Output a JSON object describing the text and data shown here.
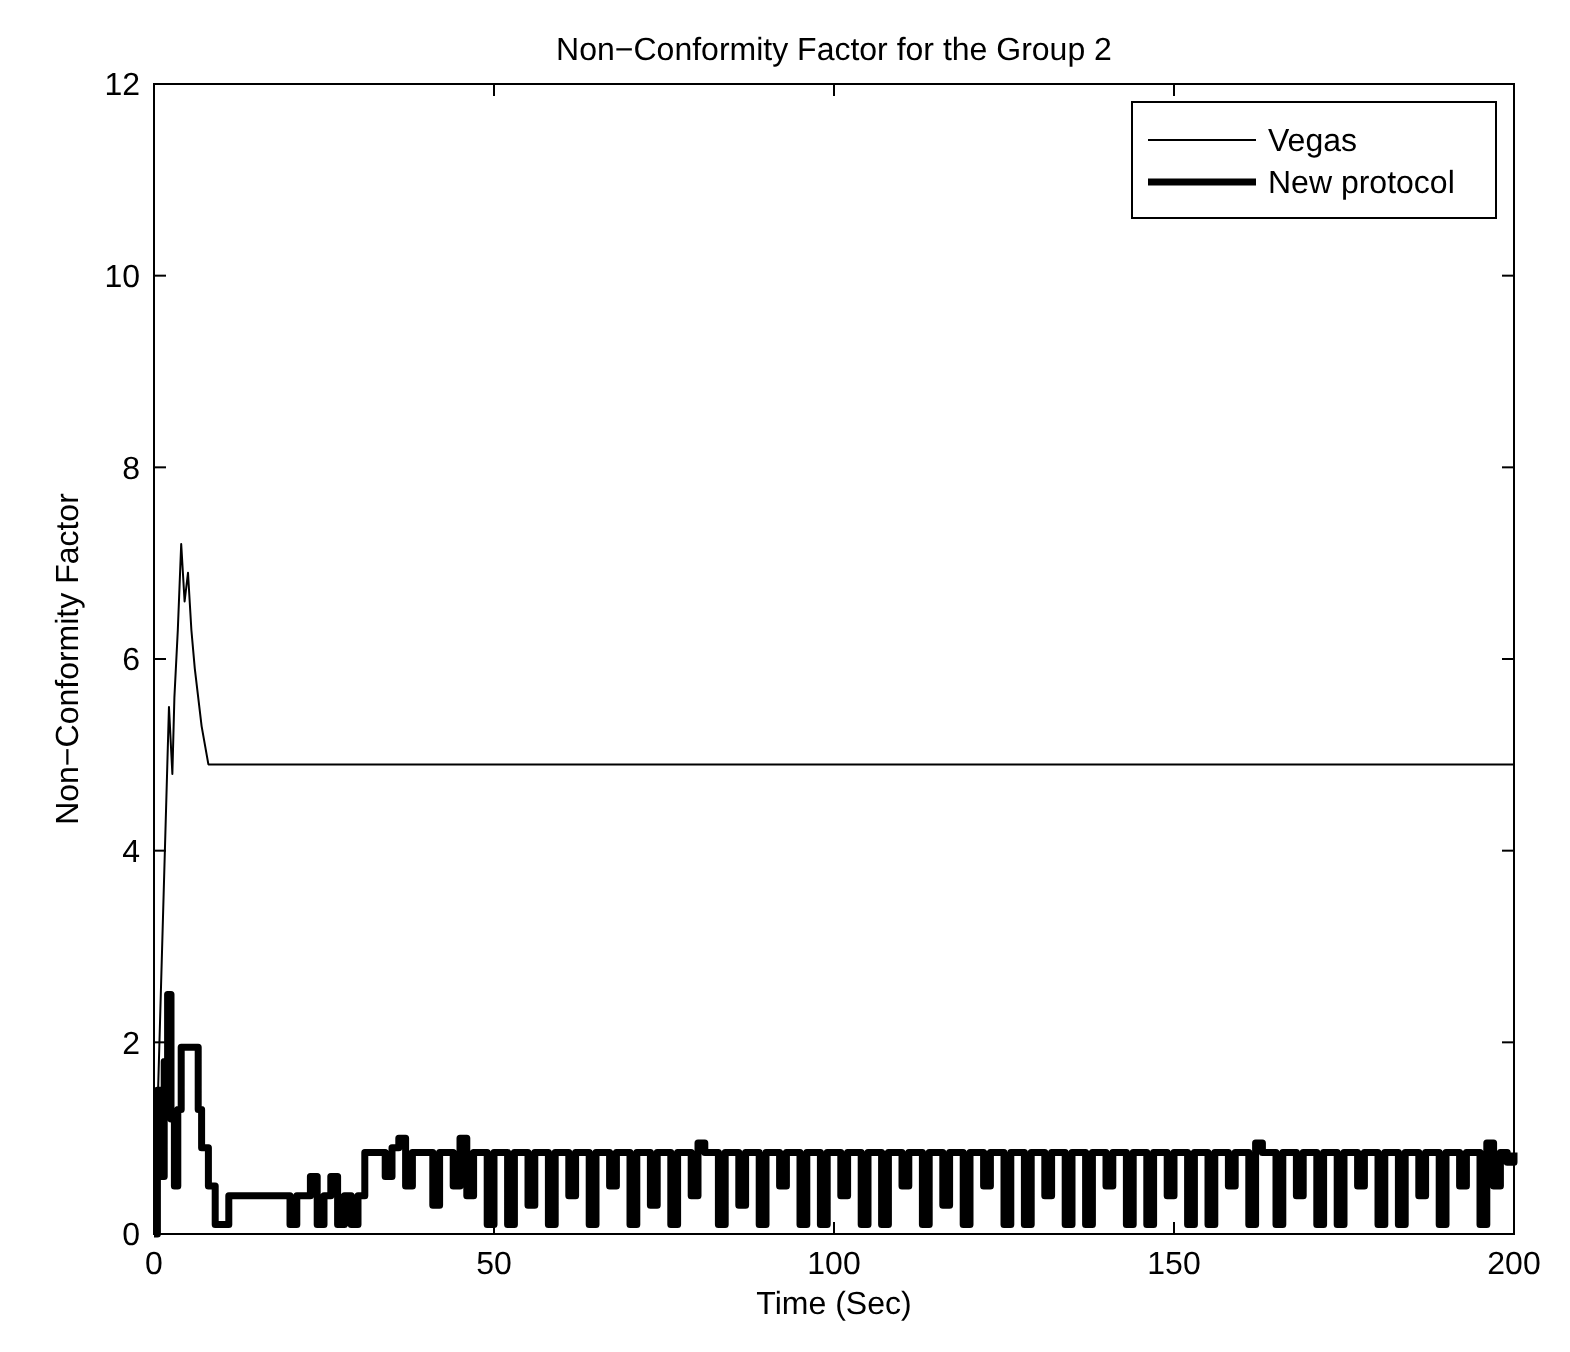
{
  "chart_data": {
    "type": "line",
    "title": "Non−Conformity Factor for the Group 2",
    "xlabel": "Time (Sec)",
    "ylabel": "Non−Conformity Factor",
    "xlim": [
      0,
      200
    ],
    "xticks": [
      0,
      50,
      100,
      150,
      200
    ],
    "ylim": [
      0,
      12
    ],
    "yticks": [
      0,
      2,
      4,
      6,
      8,
      10,
      12
    ],
    "grid": false,
    "legend": "top right",
    "series": [
      {
        "name": "Vegas",
        "color": "#000000",
        "x": [
          0,
          1,
          1.8,
          2.2,
          2.7,
          3,
          3.5,
          4,
          4.5,
          5,
          5.5,
          6,
          7,
          8,
          200
        ],
        "values": [
          0,
          2.5,
          4.5,
          5.5,
          4.8,
          5.6,
          6.3,
          7.2,
          6.6,
          6.9,
          6.3,
          5.9,
          5.3,
          4.9,
          4.9
        ]
      },
      {
        "name": "New protocol",
        "color": "#000000",
        "type": "step",
        "x": [
          0,
          0.5,
          1,
          1.5,
          2,
          2.5,
          3,
          3.5,
          4,
          6.5,
          7,
          8,
          9,
          11,
          20,
          21,
          23,
          24,
          25,
          26,
          27,
          28,
          29,
          30,
          31,
          34,
          35,
          36,
          37,
          38,
          41,
          42,
          44,
          45,
          46,
          47,
          49,
          50,
          52,
          53,
          55,
          56,
          58,
          59,
          61,
          62,
          64,
          65,
          67,
          68,
          70,
          71,
          73,
          74,
          76,
          77,
          79,
          80,
          81,
          83,
          84,
          86,
          87,
          89,
          90,
          92,
          93,
          95,
          96,
          98,
          99,
          101,
          102,
          104,
          105,
          107,
          108,
          110,
          111,
          113,
          114,
          116,
          117,
          119,
          120,
          122,
          123,
          125,
          126,
          128,
          129,
          131,
          132,
          134,
          135,
          137,
          138,
          140,
          141,
          143,
          144,
          146,
          147,
          149,
          150,
          152,
          153,
          155,
          156,
          158,
          159,
          161,
          162,
          163,
          165,
          166,
          168,
          169,
          171,
          172,
          174,
          175,
          177,
          178,
          180,
          181,
          183,
          184,
          186,
          187,
          189,
          190,
          192,
          193,
          195,
          196,
          197,
          198,
          199,
          200
        ],
        "values": [
          0,
          1.5,
          0.6,
          1.8,
          2.5,
          1.2,
          0.5,
          1.3,
          1.95,
          1.3,
          0.9,
          0.5,
          0.1,
          0.4,
          0.1,
          0.4,
          0.6,
          0.1,
          0.4,
          0.6,
          0.1,
          0.4,
          0.1,
          0.4,
          0.85,
          0.6,
          0.9,
          1.0,
          0.5,
          0.85,
          0.3,
          0.85,
          0.5,
          1.0,
          0.4,
          0.85,
          0.1,
          0.85,
          0.1,
          0.85,
          0.3,
          0.85,
          0.1,
          0.85,
          0.4,
          0.85,
          0.1,
          0.85,
          0.5,
          0.85,
          0.1,
          0.85,
          0.3,
          0.85,
          0.1,
          0.85,
          0.4,
          0.95,
          0.85,
          0.1,
          0.85,
          0.3,
          0.85,
          0.1,
          0.85,
          0.5,
          0.85,
          0.1,
          0.85,
          0.1,
          0.85,
          0.4,
          0.85,
          0.1,
          0.85,
          0.1,
          0.85,
          0.5,
          0.85,
          0.1,
          0.85,
          0.3,
          0.85,
          0.1,
          0.85,
          0.5,
          0.85,
          0.1,
          0.85,
          0.1,
          0.85,
          0.4,
          0.85,
          0.1,
          0.85,
          0.1,
          0.85,
          0.5,
          0.85,
          0.1,
          0.85,
          0.1,
          0.85,
          0.4,
          0.85,
          0.1,
          0.85,
          0.1,
          0.85,
          0.5,
          0.85,
          0.1,
          0.95,
          0.85,
          0.1,
          0.85,
          0.4,
          0.85,
          0.1,
          0.85,
          0.1,
          0.85,
          0.5,
          0.85,
          0.1,
          0.85,
          0.1,
          0.85,
          0.4,
          0.85,
          0.1,
          0.85,
          0.5,
          0.85,
          0.1,
          0.95,
          0.5,
          0.85,
          0.75,
          0.85
        ]
      }
    ]
  }
}
